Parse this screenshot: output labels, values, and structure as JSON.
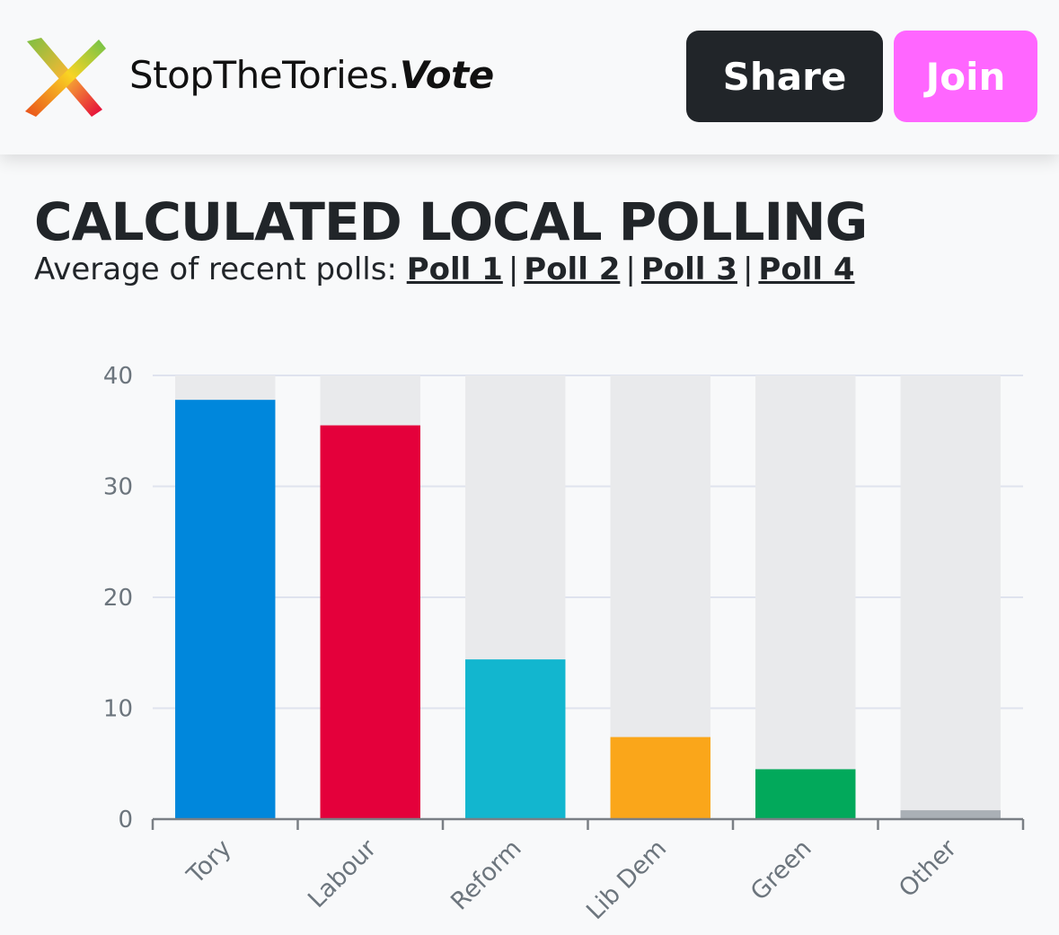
{
  "header": {
    "brand_main": "StopTheTories.",
    "brand_bold": "Vote",
    "share_label": "Share",
    "join_label": "Join",
    "logo_icon": "x-mark-icon"
  },
  "page": {
    "title": "CALCULATED LOCAL POLLING",
    "subtitle_prefix": "Average of recent polls:",
    "polls": [
      "Poll 1",
      "Poll 2",
      "Poll 3",
      "Poll 4"
    ],
    "separator": "|"
  },
  "colors": {
    "share_bg": "#212529",
    "join_bg": "#ff66ff",
    "track": "#e9eaec",
    "grid": "#dfe3ee",
    "axis": "#7a7f85"
  },
  "chart_data": {
    "type": "bar",
    "title": "",
    "xlabel": "",
    "ylabel": "",
    "ylim": [
      0,
      40
    ],
    "yticks": [
      0,
      10,
      20,
      30,
      40
    ],
    "categories": [
      "Tory",
      "Labour",
      "Reform",
      "Lib Dem",
      "Green",
      "Other"
    ],
    "values": [
      37.8,
      35.5,
      14.4,
      7.4,
      4.5,
      0.8
    ],
    "bar_colors": [
      "#0087dc",
      "#e4003b",
      "#12b6cf",
      "#faa61a",
      "#02a95b",
      "#aab0b6"
    ],
    "background_track": true,
    "grid": true,
    "legend": "none"
  }
}
